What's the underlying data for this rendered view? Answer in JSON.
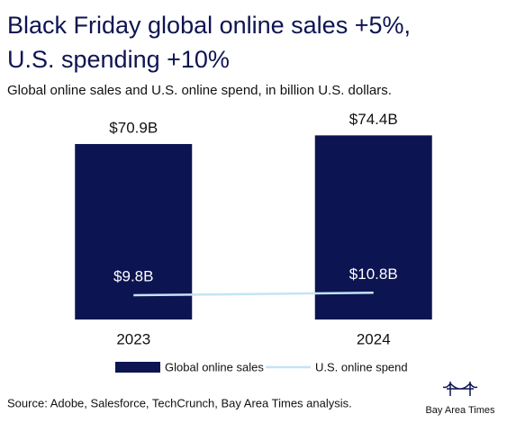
{
  "chart_data": {
    "type": "bar",
    "title": [
      "Black Friday global online sales +5%,",
      "U.S. spending +10%"
    ],
    "subtitle": "Global online sales and U.S. online spend, in billion U.S. dollars.",
    "categories": [
      "2023",
      "2024"
    ],
    "series": [
      {
        "name": "Global online sales",
        "type": "bar",
        "color": "#0d1452",
        "values": [
          70.9,
          74.4
        ],
        "value_labels": [
          "$70.9B",
          "$74.4B"
        ]
      },
      {
        "name": "U.S. online spend",
        "type": "line",
        "color": "#c4e4f4",
        "values": [
          9.8,
          10.8
        ],
        "value_labels": [
          "$9.8B",
          "$10.8B"
        ]
      }
    ],
    "source": "Source: Adobe, Salesforce, TechCrunch, Bay Area Times analysis.",
    "brand": "Bay Area Times"
  }
}
